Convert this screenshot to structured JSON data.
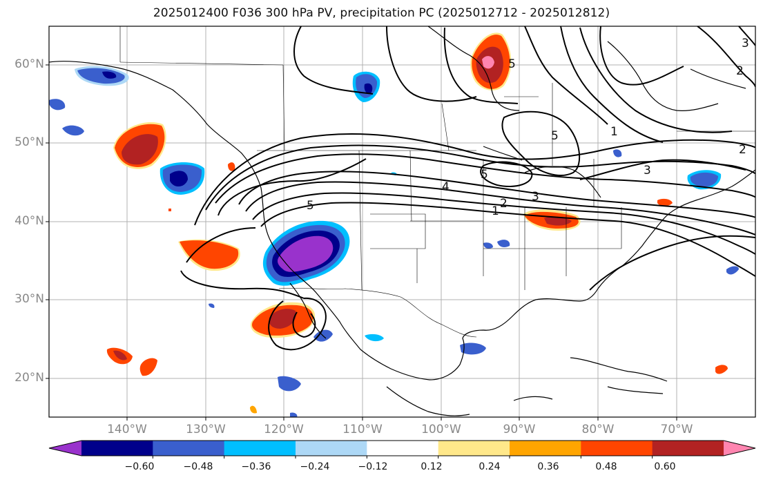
{
  "title": "2025012400 F036 300 hPa PV, precipitation PC (2025012712 - 2025012812)",
  "lat_labels": [
    "60°N",
    "50°N",
    "40°N",
    "30°N",
    "20°N"
  ],
  "lon_labels": [
    "140°W",
    "130°W",
    "120°W",
    "110°W",
    "100°W",
    "90°W",
    "80°W",
    "70°W"
  ],
  "colorbar": {
    "ticks": [
      "−0.60",
      "−0.48",
      "−0.36",
      "−0.24",
      "−0.12",
      "0.12",
      "0.24",
      "0.36",
      "0.48",
      "0.60"
    ],
    "colors": [
      "#9932CC",
      "#00008B",
      "#3A5FCD",
      "#00BFFF",
      "#ADD8F6",
      "#FFFFFF",
      "#FFE88A",
      "#FFA500",
      "#FF4500",
      "#B22222",
      "#FF85B0"
    ]
  },
  "contour_labels": [
    "1",
    "2",
    "3",
    "4",
    "5",
    "5",
    "5",
    "5",
    "1",
    "2",
    "3",
    "2",
    "3"
  ],
  "map": {
    "lat_range": [
      15,
      65
    ],
    "lon_range": [
      -150,
      -60
    ],
    "gridlines": true
  }
}
